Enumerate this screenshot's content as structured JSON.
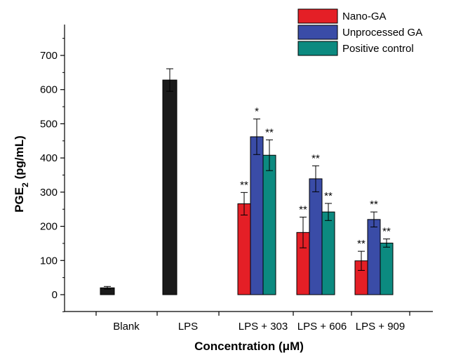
{
  "chart_data": {
    "type": "bar",
    "title": "",
    "xlabel": "Concentration (μM)",
    "ylabel": {
      "main": "PGE",
      "sub": "2",
      "rest": " (pg/mL)"
    },
    "ylim": [
      -60,
      780
    ],
    "yticks": [
      0,
      100,
      200,
      300,
      400,
      500,
      600,
      700
    ],
    "legend_position": "top-right",
    "grid": false,
    "categories": [
      "Blank",
      "LPS",
      "LPS + 303",
      "LPS + 606",
      "LPS + 909"
    ],
    "controls": [
      {
        "category": "Blank",
        "value": 20,
        "error": 4,
        "color": "#1a1a1a"
      },
      {
        "category": "LPS",
        "value": 628,
        "error": 33,
        "color": "#1a1a1a"
      }
    ],
    "series": [
      {
        "name": "Nano-GA",
        "color": "#e41f26",
        "values": [
          null,
          null,
          266,
          182,
          99
        ],
        "errors": [
          null,
          null,
          33,
          45,
          28
        ],
        "significance": [
          null,
          null,
          "**",
          "**",
          "**"
        ]
      },
      {
        "name": "Unprocessed GA",
        "color": "#3a4ca7",
        "values": [
          null,
          null,
          462,
          339,
          220
        ],
        "errors": [
          null,
          null,
          52,
          38,
          22
        ],
        "significance": [
          null,
          null,
          "*",
          "**",
          "**"
        ]
      },
      {
        "name": "Positive control",
        "color": "#0c8a80",
        "values": [
          null,
          null,
          408,
          242,
          151
        ],
        "errors": [
          null,
          null,
          45,
          25,
          12
        ],
        "significance": [
          null,
          null,
          "**",
          "**",
          "**"
        ]
      }
    ]
  }
}
